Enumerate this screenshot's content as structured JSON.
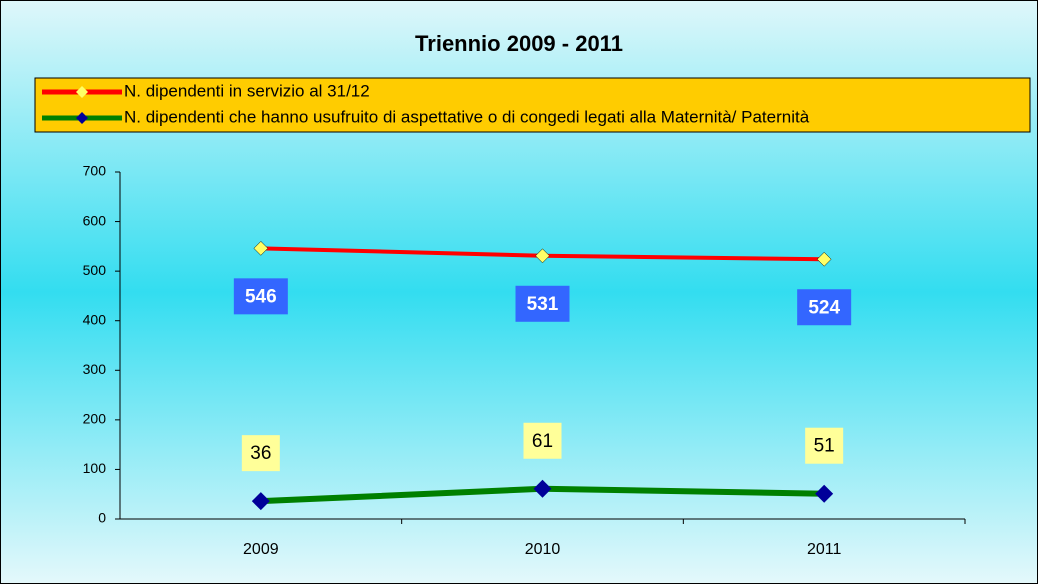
{
  "chart_data": {
    "type": "line",
    "title": "Triennio 2009 - 2011",
    "categories": [
      "2009",
      "2010",
      "2011"
    ],
    "series": [
      {
        "name": "N. dipendenti in servizio al 31/12",
        "color": "#ff0000",
        "marker_color": "#ffff66",
        "values": [
          546,
          531,
          524
        ]
      },
      {
        "name": "N. dipendenti che hanno usufruito di aspettative o di congedi legati alla Maternità/ Paternità",
        "color": "#008000",
        "marker_color": "#000099",
        "values": [
          36,
          61,
          51
        ]
      }
    ],
    "ylim": [
      0,
      700
    ],
    "yticks": [
      0,
      100,
      200,
      300,
      400,
      500,
      600,
      700
    ],
    "grid": false
  }
}
